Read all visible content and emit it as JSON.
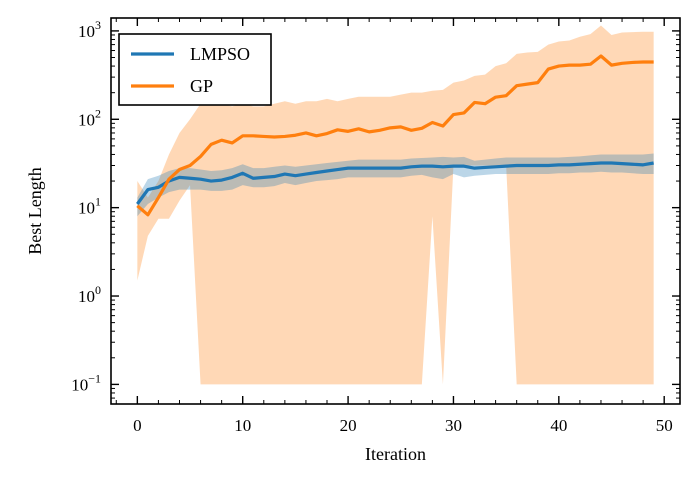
{
  "chart_data": {
    "type": "line",
    "xlabel": "Iteration",
    "ylabel": "Best Length",
    "yscale": "log",
    "xlim": [
      -2.5,
      51.5
    ],
    "ylim": [
      0.06,
      1400
    ],
    "xticks": [
      0,
      10,
      20,
      30,
      40,
      50
    ],
    "yticks": [
      {
        "value": 0.1,
        "base": "10",
        "exp": "−1"
      },
      {
        "value": 1,
        "base": "10",
        "exp": "0"
      },
      {
        "value": 10,
        "base": "10",
        "exp": "1"
      },
      {
        "value": 100,
        "base": "10",
        "exp": "2"
      },
      {
        "value": 1000,
        "base": "10",
        "exp": "3"
      }
    ],
    "legend_position": "top-left",
    "x": [
      0,
      1,
      2,
      3,
      4,
      5,
      6,
      7,
      8,
      9,
      10,
      11,
      12,
      13,
      14,
      15,
      16,
      17,
      18,
      19,
      20,
      21,
      22,
      23,
      24,
      25,
      26,
      27,
      28,
      29,
      30,
      31,
      32,
      33,
      34,
      35,
      36,
      37,
      38,
      39,
      40,
      41,
      42,
      43,
      44,
      45,
      46,
      47,
      48,
      49
    ],
    "series": [
      {
        "name": "LMPSO",
        "color": "#1f77b4",
        "band_color": "#1f77b4",
        "values": [
          11,
          16,
          17,
          20,
          22,
          21.5,
          21,
          20,
          20.5,
          22,
          24.5,
          21.5,
          22,
          22.5,
          24,
          23,
          24,
          25,
          26,
          27,
          28,
          28,
          28,
          28,
          28,
          28,
          29,
          29.5,
          29.5,
          29,
          29.5,
          29.5,
          28,
          28.5,
          29,
          29.5,
          30,
          30,
          30,
          30,
          30.5,
          30.5,
          31,
          31.5,
          32,
          32,
          31.5,
          31,
          30.5,
          32
        ],
        "lower": [
          8,
          11,
          13,
          15,
          16,
          16,
          16,
          15.5,
          15.5,
          16,
          18,
          17,
          17,
          17.5,
          19,
          18,
          19,
          20,
          20.5,
          21,
          22,
          22,
          22,
          22,
          22,
          22,
          23,
          23.5,
          22,
          21,
          24,
          22,
          23,
          23.5,
          24,
          24,
          24,
          24,
          24,
          24,
          24.5,
          24.5,
          25,
          25,
          25.5,
          25,
          25,
          24.5,
          24,
          24
        ],
        "upper": [
          13,
          21,
          23,
          26,
          28,
          28,
          27,
          26,
          26.5,
          28,
          31,
          28,
          28,
          29,
          30,
          29,
          30,
          31,
          32,
          33,
          34,
          35,
          35,
          35,
          35,
          35,
          36,
          36.5,
          37,
          37.5,
          37,
          37.5,
          34,
          35,
          36,
          37,
          37,
          37,
          37,
          37,
          37,
          37.5,
          38,
          39,
          40,
          40,
          40,
          40,
          40,
          41
        ]
      },
      {
        "name": "GP",
        "color": "#ff7f0e",
        "band_color": "#ff7f0e",
        "values": [
          10.5,
          8.3,
          13,
          21,
          27,
          30,
          38,
          52,
          58,
          54,
          65,
          65,
          64,
          63,
          64,
          66,
          70,
          65,
          69,
          76,
          73,
          78,
          72,
          75,
          80,
          82,
          75,
          79,
          92,
          84,
          113,
          118,
          155,
          150,
          178,
          185,
          240,
          250,
          260,
          370,
          400,
          410,
          410,
          420,
          520,
          410,
          430,
          440,
          445,
          445
        ],
        "lower": [
          1.5,
          4.8,
          7.5,
          7.5,
          12,
          18,
          0.1,
          0.1,
          0.1,
          0.1,
          0.1,
          0.1,
          0.1,
          0.1,
          0.1,
          0.1,
          0.1,
          0.1,
          0.1,
          0.1,
          0.1,
          0.1,
          0.1,
          0.1,
          0.1,
          0.1,
          0.1,
          0.1,
          8,
          0.1,
          30,
          30,
          30,
          30,
          30,
          30,
          0.1,
          0.1,
          0.1,
          0.1,
          0.1,
          0.1,
          0.1,
          0.1,
          0.1,
          0.1,
          0.1,
          0.1,
          0.1,
          0.1
        ],
        "upper": [
          20,
          13,
          20,
          40,
          70,
          100,
          150,
          170,
          150,
          140,
          150,
          140,
          140,
          150,
          160,
          150,
          160,
          160,
          170,
          160,
          170,
          180,
          180,
          180,
          180,
          190,
          200,
          200,
          210,
          215,
          260,
          275,
          310,
          320,
          400,
          430,
          550,
          570,
          580,
          700,
          760,
          780,
          860,
          920,
          1150,
          900,
          960,
          970,
          980,
          980
        ]
      }
    ]
  }
}
